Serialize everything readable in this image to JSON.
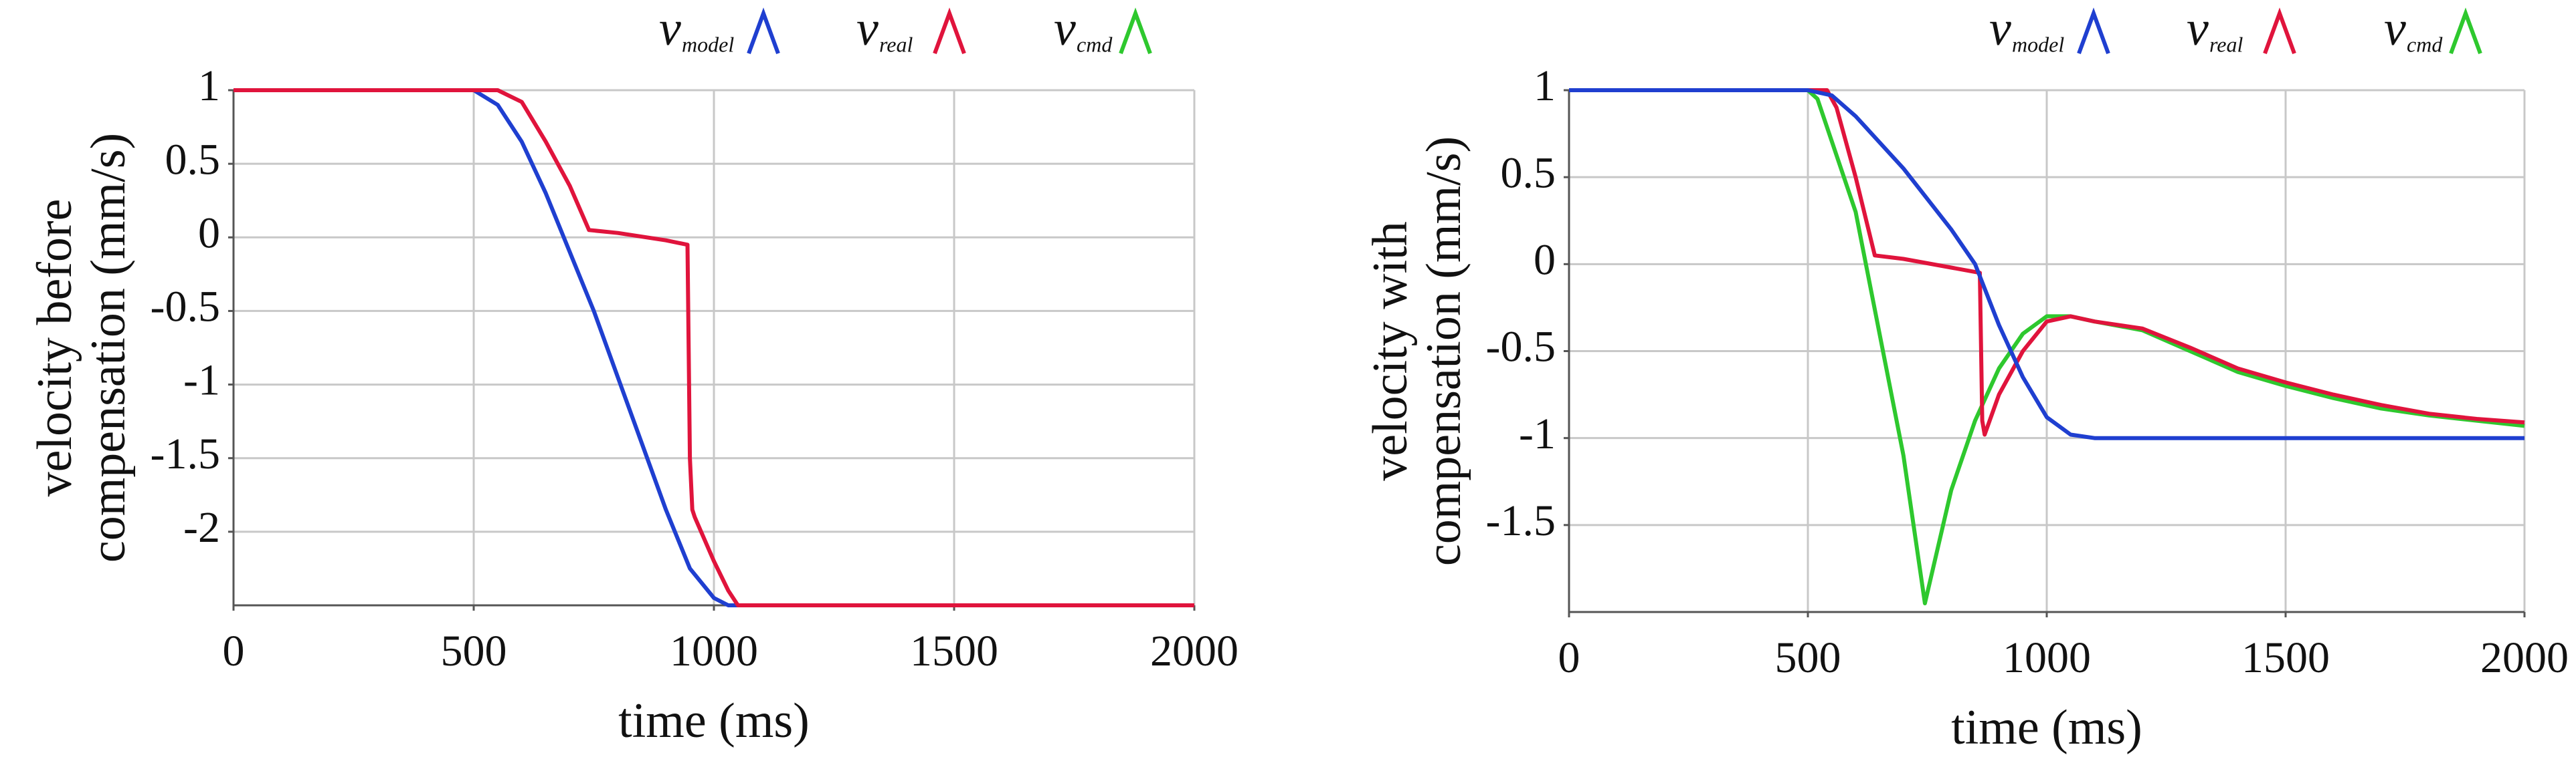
{
  "chart_data": [
    {
      "type": "line",
      "y_label_lines": [
        "velocity before",
        "compensation (mm/s)"
      ],
      "x_label": "time (ms)",
      "xlim": [
        0,
        2000
      ],
      "xticks": [
        0,
        500,
        1000,
        1500,
        2000
      ],
      "ylim": [
        -2.5,
        1
      ],
      "yticks": [
        1,
        0.5,
        0,
        -0.5,
        -1,
        -1.5,
        -2
      ],
      "grid": true,
      "series": [
        {
          "name": "v",
          "name_sub": "model",
          "color": "#1f3fd0",
          "x": [
            0,
            500,
            550,
            600,
            650,
            700,
            750,
            800,
            850,
            900,
            950,
            1000,
            1030,
            1050,
            2000
          ],
          "values": [
            1,
            1,
            0.9,
            0.65,
            0.3,
            -0.1,
            -0.5,
            -0.95,
            -1.4,
            -1.85,
            -2.25,
            -2.45,
            -2.5,
            -2.5,
            -2.5
          ]
        },
        {
          "name": "v",
          "name_sub": "real",
          "color": "#e0143c",
          "x": [
            0,
            550,
            600,
            650,
            700,
            740,
            800,
            900,
            945,
            950,
            955,
            960,
            1000,
            1030,
            1050,
            2000
          ],
          "values": [
            1,
            1,
            0.92,
            0.65,
            0.35,
            0.05,
            0.03,
            -0.02,
            -0.05,
            -1.5,
            -1.85,
            -1.9,
            -2.2,
            -2.4,
            -2.5,
            -2.5
          ]
        },
        {
          "name": "v",
          "name_sub": "cmd",
          "color": "#2ec82e",
          "x": [],
          "values": []
        }
      ]
    },
    {
      "type": "line",
      "y_label_lines": [
        "velocity with",
        "compensation (mm/s)"
      ],
      "x_label": "time (ms)",
      "xlim": [
        0,
        2000
      ],
      "xticks": [
        0,
        500,
        1000,
        1500,
        2000
      ],
      "ylim": [
        -2,
        1
      ],
      "yticks": [
        1,
        0.5,
        0,
        -0.5,
        -1,
        -1.5
      ],
      "grid": true,
      "series": [
        {
          "name": "v",
          "name_sub": "cmd",
          "color": "#2ec82e",
          "x": [
            0,
            500,
            520,
            600,
            700,
            745,
            800,
            850,
            900,
            950,
            1000,
            1050,
            1100,
            1200,
            1300,
            1400,
            1500,
            1600,
            1700,
            1800,
            1900,
            2000
          ],
          "values": [
            1,
            1,
            0.95,
            0.3,
            -1.1,
            -1.95,
            -1.3,
            -0.9,
            -0.6,
            -0.4,
            -0.3,
            -0.3,
            -0.33,
            -0.38,
            -0.5,
            -0.62,
            -0.7,
            -0.77,
            -0.83,
            -0.87,
            -0.9,
            -0.93
          ]
        },
        {
          "name": "v",
          "name_sub": "real",
          "color": "#e0143c",
          "x": [
            0,
            540,
            560,
            600,
            640,
            700,
            800,
            860,
            865,
            870,
            900,
            950,
            1000,
            1050,
            1100,
            1200,
            1300,
            1400,
            1500,
            1600,
            1700,
            1800,
            1900,
            2000
          ],
          "values": [
            1,
            1,
            0.9,
            0.5,
            0.05,
            0.03,
            -0.02,
            -0.05,
            -0.9,
            -0.98,
            -0.75,
            -0.5,
            -0.33,
            -0.3,
            -0.33,
            -0.37,
            -0.48,
            -0.6,
            -0.68,
            -0.75,
            -0.81,
            -0.86,
            -0.89,
            -0.91
          ]
        },
        {
          "name": "v",
          "name_sub": "model",
          "color": "#1f3fd0",
          "x": [
            0,
            500,
            550,
            600,
            700,
            800,
            850,
            900,
            950,
            1000,
            1050,
            1100,
            2000
          ],
          "values": [
            1,
            1,
            0.97,
            0.85,
            0.55,
            0.2,
            0,
            -0.35,
            -0.65,
            -0.88,
            -0.98,
            -1,
            -1
          ]
        }
      ]
    }
  ]
}
